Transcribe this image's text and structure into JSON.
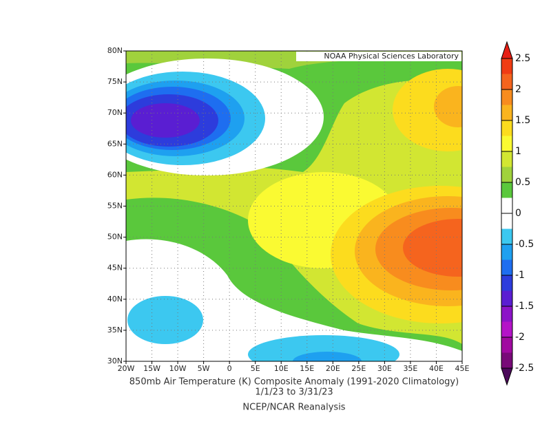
{
  "header": {
    "credit": "NOAA Physical Sciences Laboratory"
  },
  "map": {
    "lon_labels": [
      "20W",
      "15W",
      "10W",
      "5W",
      "0",
      "5E",
      "10E",
      "15E",
      "20E",
      "25E",
      "30E",
      "35E",
      "40E",
      "45E"
    ],
    "lat_labels": [
      "80N",
      "75N",
      "70N",
      "65N",
      "60N",
      "55N",
      "50N",
      "45N",
      "40N",
      "35N",
      "30N"
    ]
  },
  "caption": {
    "title": "850mb Air Temperature (K) Composite Anomaly (1991-2020 Climatology)",
    "dates": "1/1/23  to 3/31/23",
    "source": "NCEP/NCAR Reanalysis"
  },
  "colorbar": {
    "levels": [
      2.5,
      2,
      1.5,
      1,
      0.5,
      0,
      -0.5,
      -1,
      -1.5,
      -2,
      -2.5
    ],
    "colors": [
      "#e61e14",
      "#f03c14",
      "#f5641e",
      "#f88c1e",
      "#fab41e",
      "#fcdc1e",
      "#fafa32",
      "#d2e632",
      "#a0d23c",
      "#5ac83c",
      "#ffffff",
      "#ffffff",
      "#3cc8f0",
      "#1ea0f0",
      "#1e6ef0",
      "#2d3cdc",
      "#5a1ed2",
      "#8c14c8",
      "#b414c8",
      "#a00aa0",
      "#780a78",
      "#4b0a5a"
    ]
  }
}
